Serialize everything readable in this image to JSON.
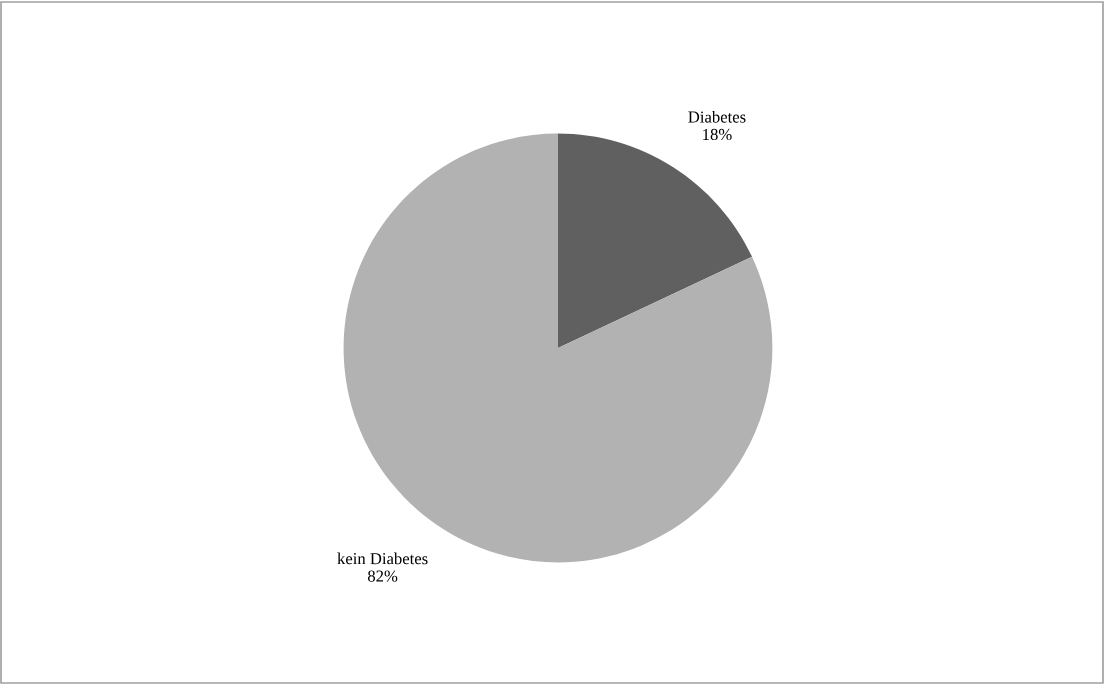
{
  "chart_data": {
    "type": "pie",
    "categories": [
      "Diabetes",
      "kein Diabetes"
    ],
    "values": [
      18,
      82
    ],
    "value_labels": [
      "18%",
      "82%"
    ],
    "colors": [
      "#606060",
      "#b2b2b2"
    ],
    "legend": false
  }
}
